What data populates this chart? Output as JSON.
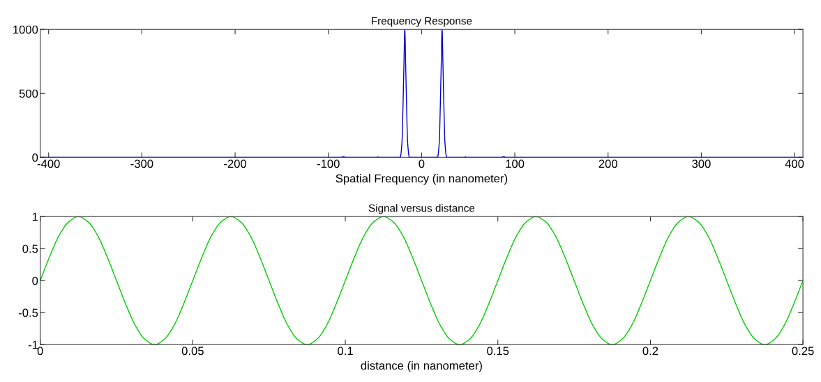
{
  "chart_data": [
    {
      "type": "line",
      "title": "Frequency Response",
      "xlabel": "Spatial Frequency (in nanometer)",
      "x": [
        -409,
        -86,
        -85,
        -83,
        -82,
        -48,
        -47,
        -46,
        -23,
        -21,
        -20,
        -19,
        -18,
        -17,
        -16,
        -15,
        -13,
        17,
        19,
        20,
        21,
        22,
        23,
        24,
        25,
        27,
        46,
        47,
        48,
        86,
        87,
        89,
        90,
        409
      ],
      "series": [
        {
          "color": "#0000cc",
          "values": [
            0,
            0,
            5,
            5,
            0,
            0,
            5,
            0,
            0,
            120,
            380,
            700,
            1000,
            700,
            380,
            120,
            0,
            0,
            120,
            380,
            700,
            1000,
            700,
            380,
            120,
            0,
            0,
            5,
            0,
            0,
            5,
            5,
            0,
            0
          ]
        }
      ],
      "xlim": [
        -409,
        409
      ],
      "xticks": [
        -400,
        -300,
        -200,
        -100,
        0,
        100,
        200,
        300,
        400
      ],
      "ylim": [
        0,
        1000
      ],
      "yticks": [
        0,
        500,
        1000
      ],
      "grid": false,
      "legend": false,
      "marker": "none",
      "line_style": "solid"
    },
    {
      "type": "line",
      "title": "Signal versus distance",
      "xlabel": "distance (in nanometer)",
      "x": [
        0,
        0.003125,
        0.00625,
        0.009375,
        0.0125,
        0.015625,
        0.01875,
        0.021875,
        0.025,
        0.028125,
        0.03125,
        0.034375,
        0.0375,
        0.040625,
        0.04375,
        0.046875,
        0.05,
        0.053125,
        0.05625,
        0.059375,
        0.0625,
        0.065625,
        0.06875,
        0.071875,
        0.075,
        0.078125,
        0.08125,
        0.084375,
        0.0875,
        0.090625,
        0.09375,
        0.096875,
        0.1,
        0.103125,
        0.10625,
        0.109375,
        0.1125,
        0.115625,
        0.11875,
        0.121875,
        0.125,
        0.128125,
        0.13125,
        0.134375,
        0.1375,
        0.140625,
        0.14375,
        0.146875,
        0.15,
        0.153125,
        0.15625,
        0.159375,
        0.1625,
        0.165625,
        0.16875,
        0.171875,
        0.175,
        0.178125,
        0.18125,
        0.184375,
        0.1875,
        0.190625,
        0.19375,
        0.196875,
        0.2,
        0.203125,
        0.20625,
        0.209375,
        0.2125,
        0.215625,
        0.21875,
        0.221875,
        0.225,
        0.228125,
        0.23125,
        0.234375,
        0.2375,
        0.240625,
        0.24375,
        0.246875,
        0.25
      ],
      "series": [
        {
          "color": "#00cc00",
          "values": [
            0,
            0.38,
            0.71,
            0.92,
            1,
            0.92,
            0.71,
            0.38,
            0,
            -0.38,
            -0.71,
            -0.92,
            -1,
            -0.92,
            -0.71,
            -0.38,
            0,
            0.38,
            0.71,
            0.92,
            1,
            0.92,
            0.71,
            0.38,
            0,
            -0.38,
            -0.71,
            -0.92,
            -1,
            -0.92,
            -0.71,
            -0.38,
            0,
            0.38,
            0.71,
            0.92,
            1,
            0.92,
            0.71,
            0.38,
            0,
            -0.38,
            -0.71,
            -0.92,
            -1,
            -0.92,
            -0.71,
            -0.38,
            0,
            0.38,
            0.71,
            0.92,
            1,
            0.92,
            0.71,
            0.38,
            0,
            -0.38,
            -0.71,
            -0.92,
            -1,
            -0.92,
            -0.71,
            -0.38,
            0,
            0.38,
            0.71,
            0.92,
            1,
            0.92,
            0.71,
            0.38,
            0,
            -0.38,
            -0.71,
            -0.92,
            -1,
            -0.92,
            -0.71,
            -0.38,
            0
          ]
        }
      ],
      "xlim": [
        0,
        0.25
      ],
      "xticks": [
        0,
        0.05,
        0.1,
        0.15,
        0.2,
        0.25
      ],
      "ylim": [
        -1,
        1
      ],
      "yticks": [
        -1,
        -0.5,
        0,
        0.5,
        1
      ],
      "grid": false,
      "legend": false,
      "marker": "none",
      "line_style": "solid"
    }
  ]
}
